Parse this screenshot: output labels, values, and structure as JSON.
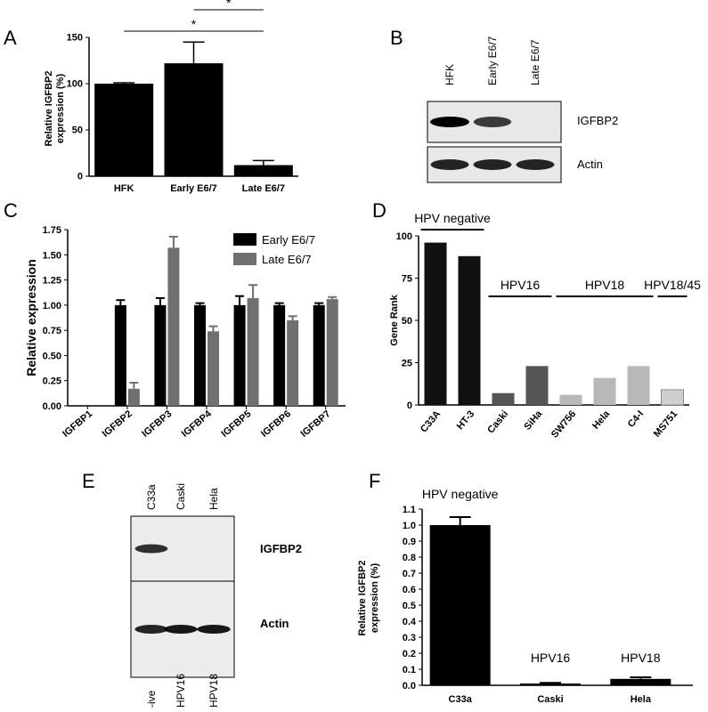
{
  "panels": {
    "A": {
      "label": "A",
      "chart_data": {
        "type": "bar",
        "categories": [
          "HFK",
          "Early E6/7",
          "Late E6/7"
        ],
        "values": [
          100,
          122,
          12
        ],
        "errors": [
          1,
          23,
          5
        ],
        "ylabel": "Relative IGFBP2\nexpression (%)",
        "ylabel_lines": [
          "Relative IGFBP2",
          "expression (%)"
        ],
        "ylim": [
          0,
          150
        ],
        "yticks": [
          "0",
          "50",
          "100",
          "150"
        ],
        "significance": [
          {
            "pair": [
              "HFK",
              "Late E6/7"
            ],
            "label": "*"
          },
          {
            "pair": [
              "Early E6/7",
              "Late E6/7"
            ],
            "label": "*"
          }
        ]
      }
    },
    "B": {
      "label": "B",
      "lanes": [
        "HFK",
        "Early E6/7",
        "Late E6/7"
      ],
      "rows": [
        {
          "name": "IGFBP2",
          "intensities": [
            1.0,
            0.75,
            0.0
          ]
        },
        {
          "name": "Actin",
          "intensities": [
            0.85,
            0.85,
            0.85
          ]
        }
      ]
    },
    "C": {
      "label": "C",
      "chart_data": {
        "type": "bar",
        "categories": [
          "IGFBP1",
          "IGFBP2",
          "IGFBP3",
          "IGFBP4",
          "IGFBP5",
          "IGFBP6",
          "IGFBP7"
        ],
        "series": [
          {
            "name": "Early E6/7",
            "color": "#000000",
            "values": [
              0,
              1.0,
              1.0,
              1.0,
              1.0,
              1.0,
              1.0
            ],
            "errors": [
              0,
              0.05,
              0.07,
              0.02,
              0.09,
              0.02,
              0.02
            ]
          },
          {
            "name": "Late E6/7",
            "color": "#707070",
            "values": [
              0,
              0.17,
              1.57,
              0.74,
              1.07,
              0.85,
              1.06
            ],
            "errors": [
              0,
              0.06,
              0.11,
              0.05,
              0.13,
              0.04,
              0.02
            ]
          }
        ],
        "ylabel": "Relative expression",
        "ylim": [
          0,
          1.75
        ],
        "yticks": [
          "0.00",
          "0.25",
          "0.50",
          "0.75",
          "1.00",
          "1.25",
          "1.50",
          "1.75"
        ],
        "legend": "top-right"
      }
    },
    "D": {
      "label": "D",
      "chart_data": {
        "type": "bar",
        "categories": [
          "C33A",
          "HT-3",
          "Caski",
          "SiHa",
          "SW756",
          "Hela",
          "C4-I",
          "MS751"
        ],
        "values": [
          96,
          88,
          7,
          23,
          6,
          16,
          23,
          9
        ],
        "colors": [
          "#111111",
          "#111111",
          "#555555",
          "#555555",
          "#b8b8b8",
          "#b8b8b8",
          "#b8b8b8",
          "#e0e0e0"
        ],
        "ylabel": "Gene Rank",
        "ylim": [
          0,
          100
        ],
        "yticks": [
          "0",
          "25",
          "50",
          "75",
          "100"
        ],
        "groups": [
          {
            "label": "HPV negative",
            "from": 0,
            "to": 1
          },
          {
            "label": "HPV16",
            "from": 2,
            "to": 3
          },
          {
            "label": "HPV18",
            "from": 4,
            "to": 6
          },
          {
            "label": "HPV18/45",
            "from": 7,
            "to": 7
          }
        ]
      }
    },
    "E": {
      "label": "E",
      "lanes": [
        "C33a",
        "Caski",
        "Hela"
      ],
      "bottom_labels": [
        "-ive",
        "HPV16",
        "HPV18"
      ],
      "rows": [
        {
          "name": "IGFBP2",
          "intensities": [
            0.8,
            0.0,
            0.0
          ]
        },
        {
          "name": "Actin",
          "intensities": [
            0.85,
            0.9,
            0.9
          ]
        }
      ]
    },
    "F": {
      "label": "F",
      "chart_data": {
        "type": "bar",
        "categories": [
          "C33a",
          "Caski",
          "Hela"
        ],
        "values": [
          1.0,
          0.01,
          0.04
        ],
        "errors": [
          0.05,
          0.005,
          0.01
        ],
        "ylabel": "Relative IGFBP2\nexpression (%)",
        "ylabel_lines": [
          "Relative IGFBP2",
          "expression (%)"
        ],
        "ylim": [
          0,
          1.1
        ],
        "yticks": [
          "0.0",
          "0.1",
          "0.2",
          "0.3",
          "0.4",
          "0.5",
          "0.6",
          "0.7",
          "0.8",
          "0.9",
          "1.0",
          "1.1"
        ],
        "annotations": [
          "HPV negative",
          "HPV16",
          "HPV18"
        ]
      }
    }
  }
}
